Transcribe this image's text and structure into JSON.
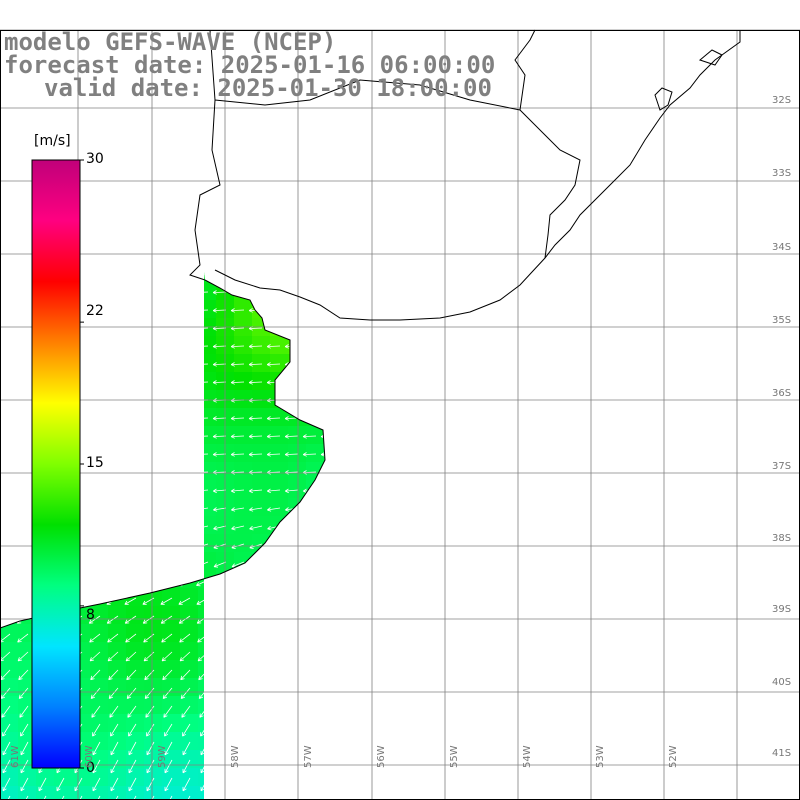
{
  "title": {
    "line1": "modelo GEFS-WAVE (NCEP)",
    "line2": "forecast date: 2025-01-16 06:00:00",
    "line3": "valid date: 2025-01-30 18:00:00"
  },
  "colorbar": {
    "unit": "[m/s]",
    "min": 0,
    "max": 30,
    "tick_labels": [
      "30",
      "22",
      "15",
      "8",
      "0"
    ],
    "tick_values": [
      30,
      22,
      15,
      8,
      0
    ],
    "colors": [
      "#0000ff",
      "#0080ff",
      "#00e5ff",
      "#00ff80",
      "#00e000",
      "#80ff00",
      "#ffff00",
      "#ff8000",
      "#ff0000",
      "#ff0080",
      "#c0007a"
    ]
  },
  "axes": {
    "lat_labels": [
      "32S",
      "33S",
      "34S",
      "35S",
      "36S",
      "37S",
      "38S",
      "39S",
      "40S",
      "41S"
    ],
    "lon_labels": [
      "61W",
      "60W",
      "59W",
      "58W",
      "57W",
      "56W",
      "55W",
      "54W",
      "53W",
      "52W"
    ],
    "lon_range": [
      -61,
      -50
    ],
    "lat_range": [
      -41.2,
      -31
    ]
  },
  "colors": {
    "grid": "#808080",
    "coast": "#000000",
    "arrow": "#ffffff",
    "land": "#ffffff"
  }
}
